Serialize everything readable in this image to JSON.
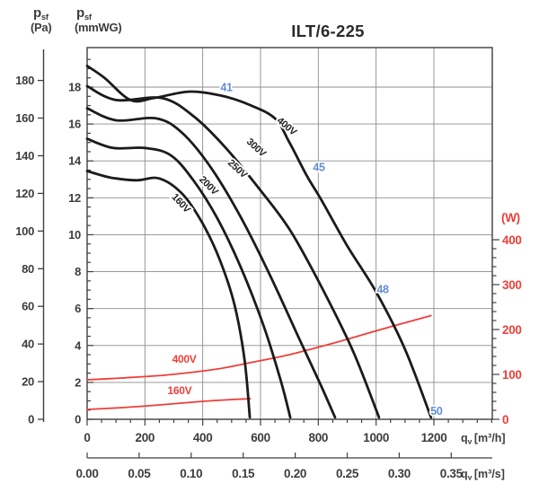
{
  "title": "ILT/6-225",
  "colors": {
    "curve": "#1b1b1b",
    "red": "#ee3f38",
    "blue": "#628fd2",
    "grid": "#8c8c8c",
    "frame": "#3f3f3f",
    "text": "#3d3d3d"
  },
  "chart_data": {
    "type": "line",
    "title": "ILT/6-225",
    "y_axis_pa": {
      "sym": "p",
      "sub": "sf",
      "unit": "(Pa)",
      "ticks": [
        0,
        20,
        40,
        60,
        80,
        100,
        120,
        140,
        160,
        180
      ],
      "range": [
        0,
        180
      ]
    },
    "y_axis_mmwg": {
      "sym": "p",
      "sub": "sf",
      "unit": "(mmWG)",
      "ticks": [
        0,
        2,
        4,
        6,
        8,
        10,
        12,
        14,
        16,
        18
      ],
      "minor_step": 0.5,
      "range": [
        0,
        20.1
      ]
    },
    "y_axis_watts": {
      "unit": "(W)",
      "ticks": [
        0,
        100,
        200,
        300,
        400
      ],
      "minor_step": 20,
      "range": [
        0,
        400
      ]
    },
    "x_axis_m3h": {
      "sym": "q",
      "sub": "v",
      "unit": "[m³/h]",
      "ticks": [
        0,
        200,
        400,
        600,
        800,
        1000,
        1200
      ],
      "minor_step": 50,
      "range": [
        0,
        1400
      ]
    },
    "x_axis_m3s": {
      "sym": "q",
      "sub": "v",
      "unit": "[m³/s]",
      "ticks": [
        "0.00",
        "0.05",
        "0.10",
        "0.15",
        "0.20",
        "0.25",
        "0.30",
        "0.35"
      ],
      "range": [
        0,
        0.39
      ]
    },
    "grid": {
      "x_step_m3h": 200,
      "y_step_mmwg": 2
    },
    "fan_curves": [
      {
        "name": "160V",
        "units": [
          "m3/h",
          "mmWG"
        ],
        "points": [
          [
            0,
            13.45
          ],
          [
            80,
            13.1
          ],
          [
            170,
            12.95
          ],
          [
            250,
            13.05
          ],
          [
            330,
            12.2
          ],
          [
            400,
            10.6
          ],
          [
            460,
            8.6
          ],
          [
            510,
            6.2
          ],
          [
            545,
            3.2
          ],
          [
            563,
            0.1
          ]
        ],
        "label": {
          "text": "160V",
          "q": 317,
          "p": 11.6,
          "angle": 47
        }
      },
      {
        "name": "200V",
        "units": [
          "m3/h",
          "mmWG"
        ],
        "points": [
          [
            0,
            15.2
          ],
          [
            90,
            14.7
          ],
          [
            200,
            14.7
          ],
          [
            290,
            14.3
          ],
          [
            370,
            12.9
          ],
          [
            450,
            10.9
          ],
          [
            530,
            8.3
          ],
          [
            610,
            5.1
          ],
          [
            670,
            2.1
          ],
          [
            703,
            0.1
          ]
        ],
        "label": {
          "text": "200V",
          "q": 413,
          "p": 12.55,
          "angle": 45
        }
      },
      {
        "name": "250V",
        "units": [
          "m3/h",
          "mmWG"
        ],
        "points": [
          [
            0,
            16.85
          ],
          [
            100,
            16.2
          ],
          [
            240,
            16.3
          ],
          [
            330,
            15.5
          ],
          [
            430,
            13.6
          ],
          [
            530,
            11.0
          ],
          [
            630,
            7.9
          ],
          [
            730,
            4.5
          ],
          [
            810,
            1.8
          ],
          [
            858,
            0.1
          ]
        ],
        "label": {
          "text": "250V",
          "q": 513,
          "p": 13.45,
          "angle": 43
        }
      },
      {
        "name": "300V",
        "units": [
          "m3/h",
          "mmWG"
        ],
        "points": [
          [
            0,
            18.05
          ],
          [
            100,
            17.3
          ],
          [
            260,
            17.4
          ],
          [
            370,
            16.4
          ],
          [
            480,
            14.7
          ],
          [
            590,
            12.6
          ],
          [
            700,
            10.3
          ],
          [
            810,
            7.2
          ],
          [
            920,
            3.7
          ],
          [
            1010,
            0.1
          ]
        ],
        "label": {
          "text": "300V",
          "q": 578,
          "p": 14.6,
          "angle": 42
        }
      },
      {
        "name": "400V",
        "units": [
          "m3/h",
          "mmWG"
        ],
        "points": [
          [
            0,
            19.15
          ],
          [
            60,
            18.5
          ],
          [
            150,
            17.3
          ],
          [
            230,
            17.4
          ],
          [
            350,
            17.75
          ],
          [
            460,
            17.55
          ],
          [
            560,
            17.05
          ],
          [
            650,
            16.3
          ],
          [
            700,
            15.0
          ],
          [
            760,
            13.2
          ],
          [
            810,
            11.9
          ],
          [
            900,
            9.4
          ],
          [
            1000,
            6.9
          ],
          [
            1100,
            3.8
          ],
          [
            1190,
            0.1
          ]
        ],
        "label": {
          "text": "400V",
          "q": 684,
          "p": 15.75,
          "angle": 40
        }
      }
    ],
    "power_curves": [
      {
        "name": "400V",
        "units": [
          "m3/h",
          "W"
        ],
        "points": [
          [
            0,
            88
          ],
          [
            120,
            92
          ],
          [
            280,
            99
          ],
          [
            450,
            112
          ],
          [
            570,
            127
          ],
          [
            700,
            144
          ],
          [
            860,
            171
          ],
          [
            1000,
            197
          ],
          [
            1100,
            215
          ],
          [
            1190,
            231
          ]
        ],
        "label": {
          "text": "400V",
          "q": 336,
          "w": 118
        }
      },
      {
        "name": "160V",
        "units": [
          "m3/h",
          "W"
        ],
        "points": [
          [
            0,
            22
          ],
          [
            120,
            26
          ],
          [
            250,
            32
          ],
          [
            400,
            40
          ],
          [
            500,
            44
          ],
          [
            565,
            46
          ]
        ],
        "label": {
          "text": "160V",
          "q": 320,
          "w": 48
        }
      }
    ],
    "noise_labels": [
      {
        "text": "41",
        "q": 482,
        "p": 18.0
      },
      {
        "text": "45",
        "q": 802,
        "p": 13.65
      },
      {
        "text": "48",
        "q": 1023,
        "p": 7.05
      },
      {
        "text": "50",
        "q": 1209,
        "p": 0.45
      }
    ]
  }
}
